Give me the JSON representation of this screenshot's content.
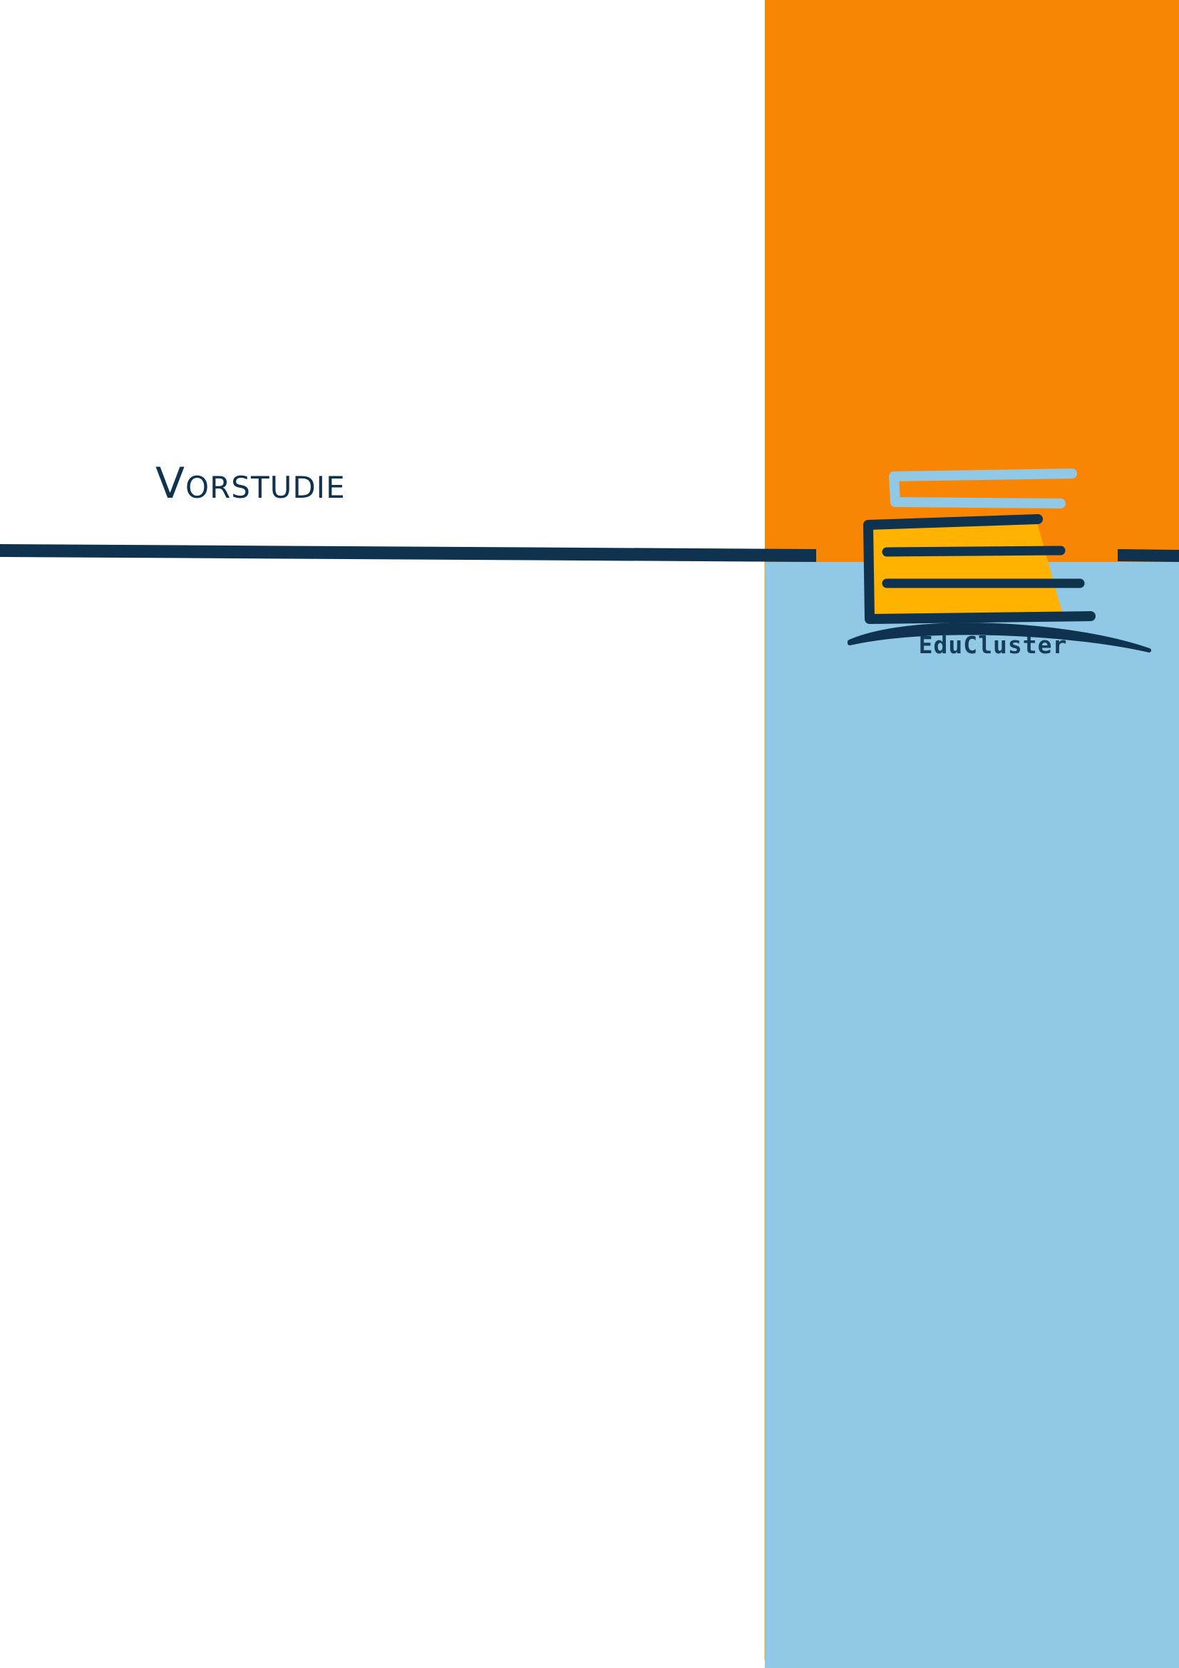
{
  "document": {
    "title": "Vorstudie"
  },
  "logo": {
    "text": "EduCluster"
  },
  "colors": {
    "orange_panel": "#f98504",
    "blue_panel": "#90c8e5",
    "navy": "#0f334f",
    "yellow": "#ffb300"
  }
}
